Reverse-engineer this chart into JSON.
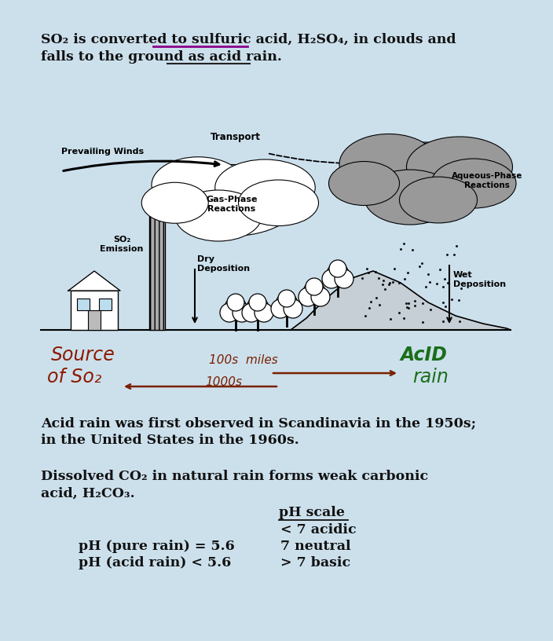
{
  "bg_color": "#cce0ec",
  "text_color": "#111111",
  "source_color": "#8b1a00",
  "acid_color": "#1a6e1a",
  "arrow_color": "#7a2000",
  "underline_sulfuric": "#8b008b",
  "underline_acid": "#222222",
  "title_line1": "SO₂ is converted to sulfuric acid, H₂SO₄, in clouds and",
  "title_line2": "falls to the ground as acid rain.",
  "text1_l1": "Acid rain was first observed in Scandinavia in the 1950s;",
  "text1_l2": "in the United States in the 1960s.",
  "text2_l1": "Dissolved CO₂ in natural rain forms weak carbonic",
  "text2_l2": "acid, H₂CO₃.",
  "ph_title": "pH scale",
  "ph_items": [
    "< 7 acidic",
    "7 neutral",
    "> 7 basic"
  ],
  "ph_left1": "pH (pure rain) = 5.6",
  "ph_left2": "pH (acid rain) < 5.6",
  "diag_prevailing": "Prevailing Winds",
  "diag_transport": "Transport",
  "diag_gas": "Gas-Phase\nReactions",
  "diag_aqueous": "Aqueous-Phase\nReactions",
  "diag_so2": "SO₂\nEmission",
  "diag_dry": "Dry\nDeposition",
  "diag_wet": "Wet\nDeposition",
  "hand_source1": "Source",
  "hand_source2": "of So₂",
  "hand_acid1": "AcID",
  "hand_acid2": "rain",
  "hand_dist1": "100s  miles",
  "hand_dist2": "1000s"
}
